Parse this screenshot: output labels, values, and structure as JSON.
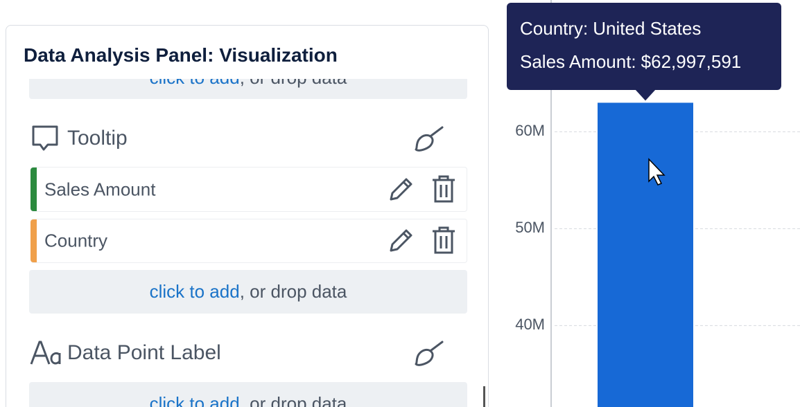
{
  "panel": {
    "title": "Data Analysis Panel: Visualization",
    "drop_zone": {
      "link": "click to add",
      "text": ", or drop data"
    },
    "sections": [
      {
        "title": "Tooltip",
        "fields": [
          "Sales Amount",
          "Country"
        ]
      },
      {
        "title": "Data Point Label"
      }
    ]
  },
  "chart_data": {
    "type": "bar",
    "categories": [
      "United States"
    ],
    "values": [
      62997591
    ],
    "value_labels": [
      "$62,997,591"
    ],
    "color": "#1769d6",
    "ylim": [
      31600000,
      73600000
    ],
    "yticks": [
      {
        "value": 40000000,
        "label": "40M"
      },
      {
        "value": 50000000,
        "label": "50M"
      },
      {
        "value": 60000000,
        "label": "60M"
      }
    ],
    "grid": true,
    "tooltip": {
      "category_label": "Country:",
      "value_label": "Sales Amount:"
    }
  }
}
